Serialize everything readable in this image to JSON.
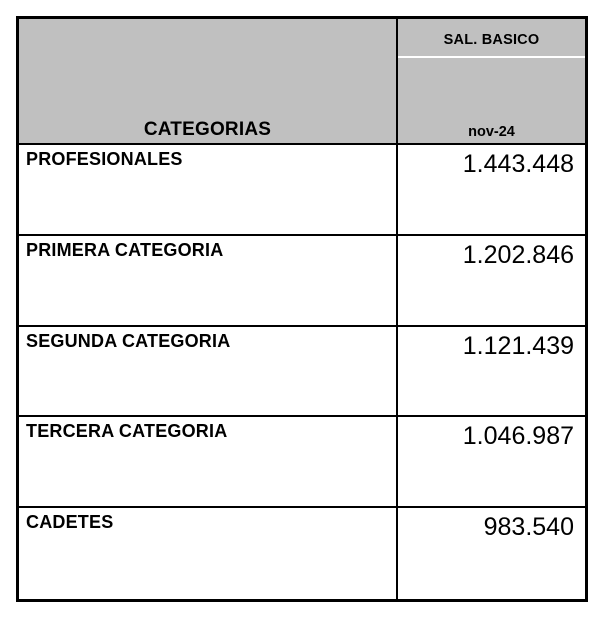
{
  "colors": {
    "header_bg": "#c0c0c0",
    "border": "#000000",
    "header_divider": "#ffffff"
  },
  "table": {
    "header": {
      "categories_label": "CATEGORIAS",
      "value_column_title": "SAL. BASICO",
      "value_column_period": "nov-24"
    },
    "rows": [
      {
        "category": "PROFESIONALES",
        "value": "1.443.448"
      },
      {
        "category": "PRIMERA CATEGORIA",
        "value": "1.202.846"
      },
      {
        "category": "SEGUNDA CATEGORIA",
        "value": "1.121.439"
      },
      {
        "category": "TERCERA CATEGORIA",
        "value": "1.046.987"
      },
      {
        "category": "CADETES",
        "value": "983.540"
      }
    ]
  }
}
